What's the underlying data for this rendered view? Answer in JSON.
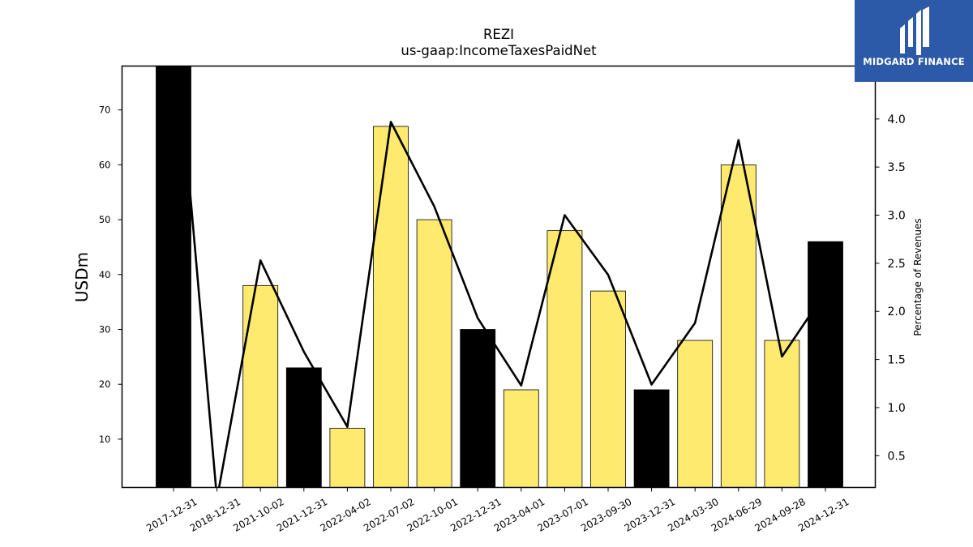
{
  "chart_data": {
    "type": "bar",
    "title": "REZI",
    "subtitle": "us-gaap:IncomeTaxesPaidNet",
    "ylabel": "USDm",
    "ylabel_right": "Percentage of Revenues",
    "categories": [
      "2017-12-31",
      "2018-12-31",
      "2021-10-02",
      "2021-12-31",
      "2022-04-02",
      "2022-07-02",
      "2022-10-01",
      "2022-12-31",
      "2023-04-01",
      "2023-07-01",
      "2023-09-30",
      "2023-12-31",
      "2024-03-30",
      "2024-06-29",
      "2024-09-28",
      "2024-12-31"
    ],
    "series": [
      {
        "type": "bar",
        "values": [
          78,
          0,
          38,
          23,
          12,
          67,
          50,
          30,
          19,
          48,
          37,
          19,
          28,
          60,
          28,
          46
        ],
        "colors": [
          "#000000",
          "#000000",
          "#fdea6e",
          "#000000",
          "#fdea6e",
          "#fdea6e",
          "#fdea6e",
          "#000000",
          "#fdea6e",
          "#fdea6e",
          "#fdea6e",
          "#000000",
          "#fdea6e",
          "#fdea6e",
          "#fdea6e",
          "#000000"
        ]
      },
      {
        "type": "line",
        "axis": "right",
        "values": [
          5.2,
          0.05,
          2.53,
          1.58,
          0.8,
          3.97,
          3.09,
          1.93,
          1.23,
          3.0,
          2.38,
          1.24,
          1.88,
          3.78,
          1.53,
          2.2
        ],
        "color": "#000000"
      }
    ],
    "ylim": [
      1.2,
      78
    ],
    "yticks": [
      10,
      20,
      30,
      40,
      50,
      60,
      70
    ],
    "ylim_right": [
      0.17,
      4.55
    ],
    "yticks_right": [
      "0.5",
      "1.0",
      "1.5",
      "2.0",
      "2.5",
      "3.0",
      "3.5",
      "4.0"
    ],
    "grid": false,
    "legend": "none"
  },
  "logo": {
    "text": "MIDGARD FINANCE",
    "background": "#2d5aa8"
  }
}
